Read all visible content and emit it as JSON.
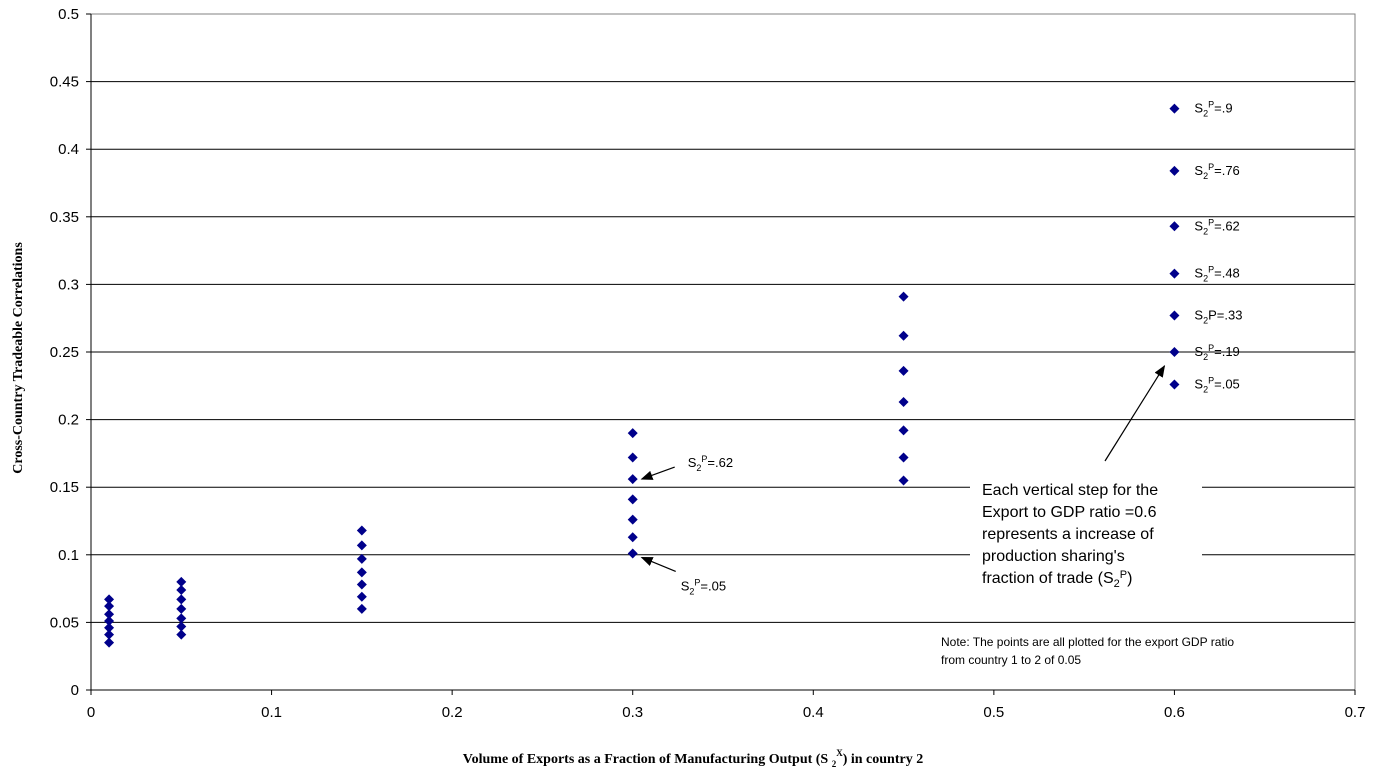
{
  "chart_data": {
    "type": "scatter",
    "xlabel": "Volume of Exports as a Fraction of Manufacturing Output (S 2X) in country 2",
    "xlabel_parts": {
      "pre": "Volume of Exports as a Fraction of Manufacturing Output (S ",
      "sub": "2",
      "sup": "X",
      "post": ") in country 2"
    },
    "ylabel": "Cross-Country   Tradeable Correlations",
    "xlim": [
      0,
      0.7
    ],
    "ylim": [
      0,
      0.5
    ],
    "x_ticks": [
      "0",
      "0.1",
      "0.2",
      "0.3",
      "0.4",
      "0.5",
      "0.6",
      "0.7"
    ],
    "y_ticks": [
      "0",
      "0.05",
      "0.1",
      "0.15",
      "0.2",
      "0.25",
      "0.3",
      "0.35",
      "0.4",
      "0.45",
      "0.5"
    ],
    "grid": "horizontal",
    "marker_color": "#00008B",
    "marker": "diamond",
    "points": [
      [
        0.01,
        0.035
      ],
      [
        0.01,
        0.041
      ],
      [
        0.01,
        0.046
      ],
      [
        0.01,
        0.051
      ],
      [
        0.01,
        0.056
      ],
      [
        0.01,
        0.062
      ],
      [
        0.01,
        0.067
      ],
      [
        0.05,
        0.041
      ],
      [
        0.05,
        0.047
      ],
      [
        0.05,
        0.053
      ],
      [
        0.05,
        0.06
      ],
      [
        0.05,
        0.067
      ],
      [
        0.05,
        0.074
      ],
      [
        0.05,
        0.08
      ],
      [
        0.15,
        0.06
      ],
      [
        0.15,
        0.069
      ],
      [
        0.15,
        0.078
      ],
      [
        0.15,
        0.087
      ],
      [
        0.15,
        0.097
      ],
      [
        0.15,
        0.107
      ],
      [
        0.15,
        0.118
      ],
      [
        0.3,
        0.101
      ],
      [
        0.3,
        0.113
      ],
      [
        0.3,
        0.126
      ],
      [
        0.3,
        0.141
      ],
      [
        0.3,
        0.156
      ],
      [
        0.3,
        0.172
      ],
      [
        0.3,
        0.19
      ],
      [
        0.45,
        0.155
      ],
      [
        0.45,
        0.172
      ],
      [
        0.45,
        0.192
      ],
      [
        0.45,
        0.213
      ],
      [
        0.45,
        0.236
      ],
      [
        0.45,
        0.262
      ],
      [
        0.45,
        0.291
      ],
      [
        0.6,
        0.226
      ],
      [
        0.6,
        0.25
      ],
      [
        0.6,
        0.277
      ],
      [
        0.6,
        0.308
      ],
      [
        0.6,
        0.343
      ],
      [
        0.6,
        0.384
      ],
      [
        0.6,
        0.43
      ]
    ],
    "point_labels": [
      {
        "x": 0.6,
        "y": 0.43,
        "pre": "S",
        "sub": "2",
        "sup": "P",
        "post": "=.9"
      },
      {
        "x": 0.6,
        "y": 0.384,
        "pre": "S",
        "sub": "2",
        "sup": "P",
        "post": "=.76"
      },
      {
        "x": 0.6,
        "y": 0.343,
        "pre": "S",
        "sub": "2",
        "sup": "P",
        "post": "=.62"
      },
      {
        "x": 0.6,
        "y": 0.308,
        "pre": "S",
        "sub": "2",
        "sup": "P",
        "post": "=.48"
      },
      {
        "x": 0.6,
        "y": 0.277,
        "pre": "S",
        "sub": "2",
        "sup": "",
        "post": "P=.33"
      },
      {
        "x": 0.6,
        "y": 0.25,
        "pre": "S",
        "sub": "2",
        "sup": "P",
        "post": "=.19"
      },
      {
        "x": 0.6,
        "y": 0.226,
        "pre": "S",
        "sub": "2",
        "sup": "P",
        "post": "=.05"
      }
    ],
    "arrow_labels": [
      {
        "x": 0.3,
        "y": 0.156,
        "pre": "S",
        "sub": "2",
        "sup": "P",
        "post": "=.62"
      },
      {
        "x": 0.3,
        "y": 0.101,
        "pre": "S",
        "sub": "2",
        "sup": "P",
        "post": "=.05"
      }
    ],
    "annotation_box": {
      "lines": [
        "Each vertical step for the",
        "Export to GDP ratio =0.6",
        "represents a increase of",
        "production sharing's"
      ],
      "last_line": {
        "pre": "fraction of trade (S",
        "sub": "2",
        "sup": "P",
        "post": ")"
      },
      "points_to": {
        "x": 0.6,
        "y": 0.25
      }
    },
    "note": [
      "Note: The points are all plotted for the export GDP ratio",
      "from country 1 to 2 of 0.05"
    ]
  }
}
